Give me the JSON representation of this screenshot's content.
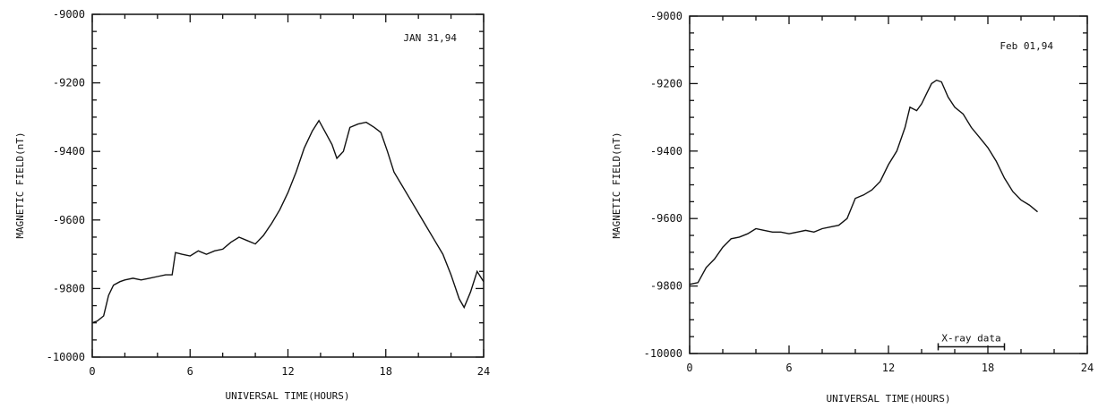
{
  "chart_data": [
    {
      "type": "line",
      "xlabel": "UNIVERSAL TIME(HOURS)",
      "ylabel": "MAGNETIC FIELD(nT)",
      "xlim": [
        0,
        24
      ],
      "ylim": [
        -10000,
        -9000
      ],
      "xticks": [
        "0",
        "6",
        "12",
        "18",
        "24"
      ],
      "yticks": [
        "-9000",
        "-9200",
        "-9400",
        "-9600",
        "-9800",
        "-10000"
      ],
      "annotations": [
        {
          "text": "JAN 31,94",
          "position": "top-right"
        }
      ],
      "grid": false,
      "series": [
        {
          "x": [
            0,
            0.3,
            0.7,
            1.0,
            1.3,
            1.7,
            2.0,
            2.5,
            3.0,
            3.5,
            4.0,
            4.5,
            4.9,
            5.1,
            5.5,
            6.0,
            6.5,
            7.0,
            7.5,
            8.0,
            8.5,
            9.0,
            9.5,
            10.0,
            10.5,
            11.0,
            11.5,
            12.0,
            12.5,
            13.0,
            13.5,
            13.9,
            14.3,
            14.7,
            15.0,
            15.4,
            15.8,
            16.3,
            16.8,
            17.3,
            17.7,
            18.1,
            18.5,
            19.0,
            19.5,
            20.0,
            20.5,
            21.0,
            21.5,
            22.0,
            22.5,
            22.8,
            23.2,
            23.6,
            24.0
          ],
          "y": [
            -9900,
            -9895,
            -9880,
            -9820,
            -9790,
            -9780,
            -9775,
            -9770,
            -9775,
            -9770,
            -9765,
            -9760,
            -9760,
            -9695,
            -9700,
            -9705,
            -9690,
            -9700,
            -9690,
            -9685,
            -9665,
            -9650,
            -9660,
            -9670,
            -9645,
            -9610,
            -9570,
            -9520,
            -9460,
            -9390,
            -9340,
            -9310,
            -9345,
            -9380,
            -9420,
            -9400,
            -9330,
            -9320,
            -9315,
            -9330,
            -9345,
            -9400,
            -9460,
            -9500,
            -9540,
            -9580,
            -9620,
            -9660,
            -9700,
            -9760,
            -9830,
            -9855,
            -9810,
            -9750,
            -9780
          ]
        }
      ]
    },
    {
      "type": "line",
      "xlabel": "UNIVERSAL TIME(HOURS)",
      "ylabel": "MAGNETIC FIELD(nT)",
      "xlim": [
        0,
        24
      ],
      "ylim": [
        -10000,
        -9000
      ],
      "xticks": [
        "0",
        "6",
        "12",
        "18",
        "24"
      ],
      "yticks": [
        "-9000",
        "-9200",
        "-9400",
        "-9600",
        "-9800",
        "-10000"
      ],
      "annotations": [
        {
          "text": "Feb 01,94",
          "position": "top-right"
        },
        {
          "text": "X-ray data",
          "x_range": [
            15.0,
            19.0
          ],
          "y": -9980
        }
      ],
      "grid": false,
      "series": [
        {
          "x": [
            0,
            0.5,
            1.0,
            1.5,
            2.0,
            2.5,
            3.0,
            3.5,
            4.0,
            4.5,
            5.0,
            5.5,
            6.0,
            6.5,
            7.0,
            7.5,
            8.0,
            8.5,
            9.0,
            9.5,
            10.0,
            10.5,
            11.0,
            11.5,
            12.0,
            12.5,
            13.0,
            13.3,
            13.7,
            14.0,
            14.3,
            14.6,
            14.9,
            15.2,
            15.6,
            16.0,
            16.5,
            17.0,
            17.5,
            18.0,
            18.5,
            19.0,
            19.5,
            20.0,
            20.5,
            21.0
          ],
          "y": [
            -9795,
            -9790,
            -9745,
            -9720,
            -9685,
            -9660,
            -9655,
            -9645,
            -9630,
            -9635,
            -9640,
            -9640,
            -9645,
            -9640,
            -9635,
            -9640,
            -9630,
            -9625,
            -9620,
            -9600,
            -9540,
            -9530,
            -9515,
            -9490,
            -9440,
            -9400,
            -9330,
            -9270,
            -9280,
            -9260,
            -9230,
            -9200,
            -9190,
            -9195,
            -9240,
            -9270,
            -9290,
            -9330,
            -9360,
            -9390,
            -9430,
            -9480,
            -9520,
            -9545,
            -9560,
            -9580
          ]
        }
      ]
    }
  ]
}
